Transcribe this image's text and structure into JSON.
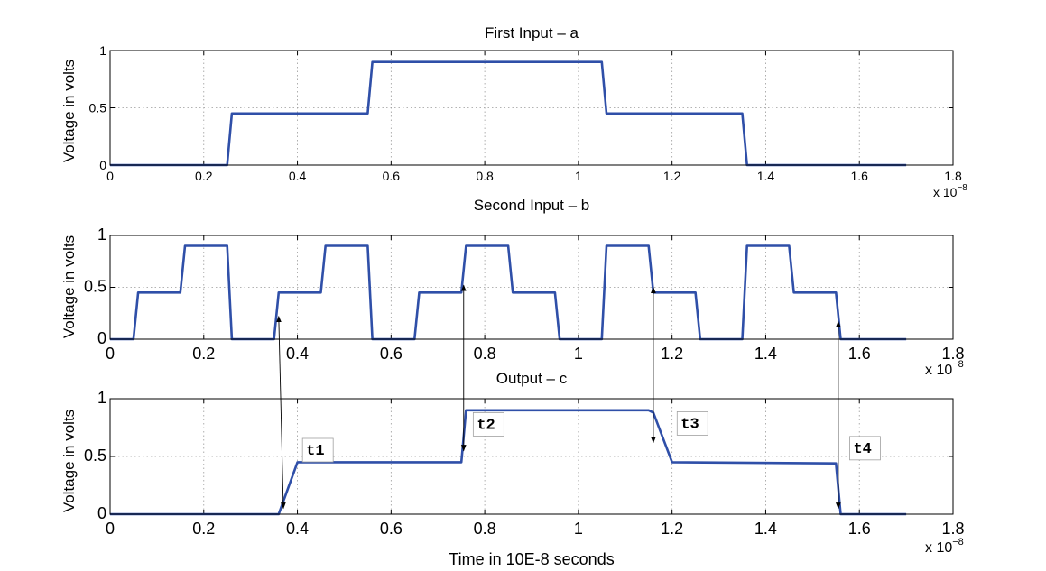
{
  "colors": {
    "signal": "#2f4fa8",
    "axis": "#000000",
    "grid": "#9a9a9a",
    "annotation_box": "#a0a0a0"
  },
  "xlabel": "Time in 10E-8 seconds",
  "chart_data": [
    {
      "type": "line",
      "title": "First Input – a",
      "ylabel": "Voltage in volts",
      "xlim": [
        0,
        1.8e-08
      ],
      "ylim": [
        0,
        1
      ],
      "xticks": [
        0,
        2e-09,
        4e-09,
        6e-09,
        8e-09,
        1e-08,
        1.2e-08,
        1.4e-08,
        1.6e-08,
        1.8e-08
      ],
      "xtick_labels": [
        "0",
        "0.2",
        "0.4",
        "0.6",
        "0.8",
        "1",
        "1.2",
        "1.4",
        "1.6",
        "1.8"
      ],
      "yticks": [
        0,
        0.5,
        1
      ],
      "ytick_labels": [
        "0",
        "0.5",
        "1"
      ],
      "exponent_label": {
        "base": "x 10",
        "power": "−8"
      },
      "grid": true,
      "series": [
        {
          "x": [
            0,
            2.5e-09,
            2.6e-09,
            5.5e-09,
            5.6e-09,
            1.05e-08,
            1.06e-08,
            1.35e-08,
            1.36e-08,
            1.7e-08
          ],
          "y": [
            0,
            0,
            0.45,
            0.45,
            0.9,
            0.9,
            0.45,
            0.45,
            0,
            0
          ]
        }
      ]
    },
    {
      "type": "line",
      "title": "Second Input – b",
      "ylabel": "Voltage in volts",
      "xlim": [
        0,
        1.8e-08
      ],
      "ylim": [
        0,
        1
      ],
      "xticks": [
        0,
        2e-09,
        4e-09,
        6e-09,
        8e-09,
        1e-08,
        1.2e-08,
        1.4e-08,
        1.6e-08,
        1.8e-08
      ],
      "xtick_labels": [
        "0",
        "0.2",
        "0.4",
        "0.6",
        "0.8",
        "1",
        "1.2",
        "1.4",
        "1.6",
        "1.8"
      ],
      "yticks": [
        0,
        0.5,
        1
      ],
      "ytick_labels": [
        "0",
        "0.5",
        "1"
      ],
      "exponent_label": {
        "base": "x 10",
        "power": "−8"
      },
      "grid": true,
      "series": [
        {
          "x": [
            0,
            5e-10,
            6e-10,
            1.5e-09,
            1.6e-09,
            2.5e-09,
            2.6e-09,
            3.5e-09,
            3.6e-09,
            4.5e-09,
            4.6e-09,
            5.5e-09,
            5.6e-09,
            6.5e-09,
            6.6e-09,
            7.5e-09,
            7.6e-09,
            8.5e-09,
            8.6e-09,
            9.5e-09,
            9.6e-09,
            1.05e-08,
            1.06e-08,
            1.15e-08,
            1.16e-08,
            1.25e-08,
            1.26e-08,
            1.35e-08,
            1.36e-08,
            1.45e-08,
            1.46e-08,
            1.55e-08,
            1.56e-08,
            1.7e-08
          ],
          "y": [
            0,
            0,
            0.45,
            0.45,
            0.9,
            0.9,
            0,
            0,
            0.45,
            0.45,
            0.9,
            0.9,
            0,
            0,
            0.45,
            0.45,
            0.9,
            0.9,
            0.45,
            0.45,
            0,
            0,
            0.9,
            0.9,
            0.45,
            0.45,
            0,
            0,
            0.9,
            0.9,
            0.45,
            0.45,
            0,
            0
          ]
        }
      ]
    },
    {
      "type": "line",
      "title": "Output – c",
      "ylabel": "Voltage in volts",
      "xlim": [
        0,
        1.8e-08
      ],
      "ylim": [
        0,
        1
      ],
      "xticks": [
        0,
        2e-09,
        4e-09,
        6e-09,
        8e-09,
        1e-08,
        1.2e-08,
        1.4e-08,
        1.6e-08,
        1.8e-08
      ],
      "xtick_labels": [
        "0",
        "0.2",
        "0.4",
        "0.6",
        "0.8",
        "1",
        "1.2",
        "1.4",
        "1.6",
        "1.8"
      ],
      "yticks": [
        0,
        0.5,
        1
      ],
      "ytick_labels": [
        "0",
        "0.5",
        "1"
      ],
      "exponent_label": {
        "base": "x 10",
        "power": "−8"
      },
      "grid": true,
      "series": [
        {
          "x": [
            0,
            3.6e-09,
            4e-09,
            7.5e-09,
            7.6e-09,
            1.15e-08,
            1.16e-08,
            1.2e-08,
            1.55e-08,
            1.56e-08,
            1.7e-08
          ],
          "y": [
            0,
            0,
            0.45,
            0.45,
            0.9,
            0.9,
            0.88,
            0.45,
            0.44,
            0,
            0
          ]
        }
      ],
      "annotations": [
        {
          "label": "t1",
          "x": 3.8e-09,
          "y": 0.25,
          "from_x": 3.6e-09,
          "from_y": 0.22
        },
        {
          "label": "t2",
          "x": 7.6e-09,
          "y": 0.7,
          "from_x": 7.55e-09,
          "from_y": 0.52
        },
        {
          "label": "t3",
          "x": 1.18e-08,
          "y": 0.7,
          "from_x": 1.16e-08,
          "from_y": 0.5
        },
        {
          "label": "t4",
          "x": 1.56e-08,
          "y": 0.22,
          "from_x": 1.555e-08,
          "from_y": 0.17
        }
      ]
    }
  ]
}
